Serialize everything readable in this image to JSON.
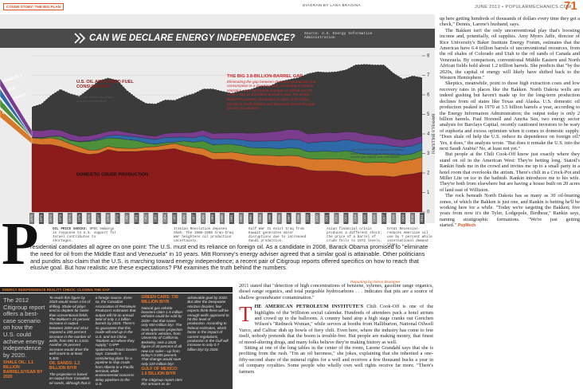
{
  "header": {
    "section_tag": "COVER STORY: THE BIG PLAN",
    "credit": "DIAGRAM BY LANA BRAGINA",
    "issue": "JUNE 2012 • POPULARMECHANICS.COM",
    "page_number": "71"
  },
  "chart_data": {
    "type": "area",
    "stacked": true,
    "grid": true,
    "title": "CAN WE DECLARE ENERGY INDEPENDENCE?",
    "source": "Source: U.S. Energy Information Administration",
    "y_label": "BARRELS (BILLIONS)",
    "x": [
      1970,
      1971,
      1972,
      1973,
      1974,
      1975,
      1976,
      1977,
      1978,
      1979,
      1980,
      1981,
      1982,
      1983,
      1984,
      1985,
      1986,
      1987,
      1988,
      1989,
      1990,
      1991,
      1992,
      1993,
      1994,
      1995,
      1996,
      1997,
      1998,
      1999,
      2000,
      2001,
      2002,
      2003,
      2004,
      2005,
      2006,
      2007,
      2008,
      2009,
      2010,
      2011
    ],
    "xlim": [
      1970,
      2011
    ],
    "ylim": [
      0,
      8
    ],
    "yticks": [
      0,
      1,
      2,
      3,
      4,
      5,
      6,
      7,
      8
    ],
    "series": [
      {
        "name": "DOMESTIC CRUDE PRODUCTION",
        "color": "#8e1b1b",
        "values": [
          3.5,
          3.45,
          3.45,
          3.35,
          3.2,
          3.05,
          2.95,
          3.0,
          3.2,
          3.1,
          3.1,
          3.1,
          3.15,
          3.15,
          3.2,
          3.25,
          3.1,
          3.0,
          2.9,
          2.7,
          2.7,
          2.7,
          2.6,
          2.5,
          2.45,
          2.4,
          2.35,
          2.35,
          2.3,
          2.15,
          2.1,
          2.1,
          2.1,
          2.05,
          1.95,
          1.85,
          1.85,
          1.85,
          1.8,
          1.9,
          1.95,
          2.05
        ]
      },
      {
        "name": "CANADA",
        "color": "#d8782a",
        "values": [
          0.3,
          0.3,
          0.35,
          0.35,
          0.3,
          0.28,
          0.22,
          0.18,
          0.17,
          0.18,
          0.16,
          0.16,
          0.18,
          0.2,
          0.23,
          0.27,
          0.29,
          0.31,
          0.36,
          0.34,
          0.34,
          0.37,
          0.4,
          0.42,
          0.45,
          0.5,
          0.52,
          0.55,
          0.57,
          0.59,
          0.6,
          0.62,
          0.62,
          0.64,
          0.67,
          0.68,
          0.69,
          0.7,
          0.7,
          0.72,
          0.73,
          0.78
        ]
      },
      {
        "name": "SAUDI ARABIA",
        "color": "#4e8f3a",
        "values": [
          0.02,
          0.05,
          0.07,
          0.18,
          0.17,
          0.26,
          0.45,
          0.5,
          0.42,
          0.5,
          0.45,
          0.4,
          0.2,
          0.12,
          0.12,
          0.06,
          0.25,
          0.27,
          0.38,
          0.4,
          0.43,
          0.4,
          0.4,
          0.38,
          0.38,
          0.38,
          0.37,
          0.38,
          0.39,
          0.35,
          0.4,
          0.4,
          0.36,
          0.45,
          0.43,
          0.42,
          0.4,
          0.4,
          0.43,
          0.3,
          0.3,
          0.35
        ]
      },
      {
        "name": "MEXICO",
        "color": "#2f6aa8",
        "values": [
          0.01,
          0.01,
          0.01,
          0.01,
          0.03,
          0.03,
          0.03,
          0.07,
          0.11,
          0.16,
          0.19,
          0.19,
          0.25,
          0.25,
          0.27,
          0.25,
          0.2,
          0.22,
          0.27,
          0.28,
          0.27,
          0.28,
          0.3,
          0.33,
          0.35,
          0.36,
          0.4,
          0.44,
          0.45,
          0.45,
          0.48,
          0.5,
          0.55,
          0.57,
          0.58,
          0.57,
          0.56,
          0.52,
          0.44,
          0.41,
          0.42,
          0.4
        ]
      },
      {
        "name": "VENEZUELA",
        "color": "#7a3c8c",
        "values": [
          0.35,
          0.35,
          0.35,
          0.3,
          0.3,
          0.25,
          0.25,
          0.25,
          0.23,
          0.23,
          0.17,
          0.15,
          0.15,
          0.15,
          0.2,
          0.22,
          0.22,
          0.28,
          0.28,
          0.3,
          0.3,
          0.3,
          0.35,
          0.4,
          0.42,
          0.45,
          0.5,
          0.5,
          0.5,
          0.45,
          0.45,
          0.45,
          0.42,
          0.4,
          0.45,
          0.45,
          0.42,
          0.4,
          0.38,
          0.36,
          0.35,
          0.33
        ]
      }
    ],
    "consumption": {
      "name": "U.S. OIL AND LIQUID FUEL CONSUMPTION",
      "note": "Includes liquid natural gas, ethanol and biodiesel",
      "color": "#3b3b3b",
      "values": [
        5.4,
        5.55,
        5.99,
        6.3,
        6.08,
        5.95,
        6.32,
        6.73,
        6.88,
        6.76,
        6.24,
        5.86,
        5.58,
        5.55,
        5.76,
        5.74,
        5.94,
        6.08,
        6.32,
        6.32,
        6.2,
        6.1,
        6.23,
        6.3,
        6.47,
        6.47,
        6.7,
        6.8,
        6.9,
        7.1,
        7.2,
        7.17,
        7.2,
        7.3,
        7.55,
        7.58,
        7.55,
        7.55,
        7.13,
        6.83,
        6.99,
        6.9
      ]
    },
    "gap_note": {
      "title": "THE BIG 3.8-BILLION-BARREL GAP",
      "text": "Eliminating the gap between domestic production and consumption is a daunting task. According to federal statistics, U.S. oil imports average 11 million barrels of oil a day, or 3.8 billion barrels a year. For all the Bakken's promise, production in 2011 (176 million barrels in North Dakota and Montana) closed the gap by only 4.6 percent."
    },
    "domestic_note": "Total DOMESTIC production including crude and other liquid fuels such as natural gas liquids and renewables",
    "events_heading": "OIL PRICE SHOCKS:",
    "events": [
      "OPEC embargo in response to U.S. support for Israel contributes to shortages.",
      "Iranian Revolution deposes Shah. The 1980–1988 Iran-Iraq War heightens oil production uncertainty.",
      "Gulf War to evict Iraq from Kuwait generates minor disruptions due to increased Saudi production.",
      "Asian financial crisis produces a different shock: the price of a barrel of crude falls to 1972 levels.",
      "Great Recession reduces American oil use by 7 percent while international demand rises."
    ]
  },
  "lead": {
    "drop_cap": "P",
    "text": "residential candidates all agree on one point: The U.S. must end its reliance on foreign oil. As a candidate in 2008, Barack Obama promised to \"eliminate the need for oil from the Middle East and Venezuela\" in 10 years. Mitt Romney's energy adviser agreed that a similar goal is attainable. Other politicians and pundits also claim that the U.S. is marching toward energy independence; a recent pair of Citigroup reports offered specifics on how to reach that elusive goal. But how realistic are these expectations? PM examines the truth behind the numbers.",
    "credit": "Reporting by Glenn Brummer"
  },
  "reality_check": {
    "tag": "ENERGY INDEPENDENCE REALITY CHECK: CLOSING THE GAP",
    "intro": "The 2012 Citigroup report offers a best-case scenario on how the U.S. could achieve energy independence by 2020.",
    "sections": [
      {
        "heading": "SHALE OIL: 1.1 BILLION BARRELS/YEAR BY 2020",
        "text": "To reach this figure by 2020 would mean a lot of drilling. Shale-oil plays tend to deplete far faster than conventional fields. The Bakken's 25 percent increase in output between 2009 and 2012 required a 280 percent increase in the number of wells, from 891 to 3,510. Another 25 percent increase would drive the well count to at least 9,400."
      },
      {
        "heading": "OIL SANDS: 1.2 BILLION B/YR",
        "text": "The projection is based on output from Canadian oil sands, although that is a foreign source. Even so, the Canadian Association of Petroleum Producers estimates that output will hit an annual total of only 1.1 billion barrels by 2020. There's no guarantee that this crude will end up in the U.S. and not China. \"Markets act where they supply,\" CAPP spokesman Travis Davies says. Canada is considering plans for a pipeline to ship crude from Alberta to a Pacific terminal, while environmental concerns delay pipelines to the U.S."
      },
      {
        "heading": "GREEN CARS: 730 MILLION B/YR",
        "text": "Natural gas vehicle boosters claim 1.5 million vehicles could be sold by 2020—but that saves only 550 million b/yr. The most optimistic projection of electric vehicles, from University of California, Berkeley, sets a 2020 figure of 40 percent of all new car sales—up from today's 0.005 percent. That change would save only 120 million b/yr."
      },
      {
        "heading": "GULF OF MEXICO: 1.6 BILLION B/YR",
        "text": "The Citigroup report cites this amount as an achievable goal by 2020. But after the Deepwater Horizon disaster, few experts think there will be enough wells approved to hit this level of production. According to federal estimates, which factor in the impact of current regulations, production in the Gulf will increase to only 0.7 billion b/yr by 2020."
      }
    ]
  },
  "article": {
    "middle": [
      "2011 stated that \"detection of high concentrations of benzene, xylenes, gasoline range organics, diesel range organics, and total purgeable hydrocarbons . . . indicates that pits are a source of shallow groundwater contamination.\""
    ],
    "drop_cap": "T",
    "lead_in": "HE AMERICAN PETROLEUM INSTITUTE'S",
    "middle_after": [
      "Chili Cook-Off is one of the highlights of the Williston social calendar. Hundreds of attendees pack a hotel atrium and crowd up to the ballroom. A country band atop a high stage cranks out Gretchen Wilson's \"Redneck Woman,\" while servers at booths from Halliburton, National Oilwell Varco, and Calfrac dish up bowls of fiery chili. Even here, where the industry has come to fete itself, nobody pretends that the boom is trouble-free. But people are making money, that finest of mood-altering drugs, and many folks believe they're making history as well.",
      "Sitting at one of the long tables in the center of the room, Larene Grandahl says that she is profiting from the rush. \"I'm an oil baroness,\" she jokes, explaining that she inherited a one-fifty-second share of the mineral rights for a well and receives a few thousand bucks a year in oil company royalties. Some people who wholly own well rights receive far more. \"There's farmers"
    ],
    "right": [
      "up here getting hundreds of thousands of dollars every time they get a check,\" Dennis, Larene's husband, says.",
      "The Bakken isn't the only unconventional play that's boosting income and, potentially, oil supplies. Amy Myers Jaffe, director of Rice University's Baker Institute Energy Forum, estimates that the Americas have 6.4 trillion barrels of unconventional resources, from the oil shales of Colorado and Utah to the oil sands of Canada and Venezuela. By comparison, conventional Middle Eastern and North African fields hold about 1.2 trillion barrels. She predicts that \"by the 2020s, the capital of energy will likely have shifted back to the Western Hemisphere.\"",
      "Skeptics, meanwhile, point to those high extraction costs and low recovery rates in places like the Bakken. North Dakota wells are indeed gushing but haven't made up for the long-term production declines from oil states like Texas and Alaska. U.S. domestic oil production peaked in 1970 at 3.5 billion barrels a year, according to the Energy Information Administration; the output today is only 2 billion barrels. Paul Horsnell and Amrita Sen, two energy sector analysts for Barclays Capital, recently cautioned investors to be wary of euphoria and excess optimism when it comes to domestic supply. \"Does shale oil help the U.S. reduce its dependence on foreign oil? Yes, it does,\" the analysts wrote. \"But does it remake the U.S. into the next Saudi Arabia? No, at least not yet.\"",
      "But people at the Chili Cook-Off know just exactly where they stand on oil in the American West: They're betting long. Statoil's Rankin finds me in the crowd and invites me up to a small party in a hotel room that overlooks the atrium. There's chili in a Crock-Pot and Miller Lite on ice in the bathtub. Rankin introduces me to his wife. They're both from elsewhere but are having a house built on 20 acres of land east of Williston.",
      "The rock beneath North Dakota has as many as 30 oil-bearing zones, of which the Bakken is just one, and Rankin is betting he'll be working here for a while. \"Today we're targeting the Bakken; five years from now it's the Tyler, Lodgepole, Birdbear,\" Rankin says, naming stratigraphic formations. \"We're just getting started.\""
    ],
    "end_mark": "PopMech"
  }
}
